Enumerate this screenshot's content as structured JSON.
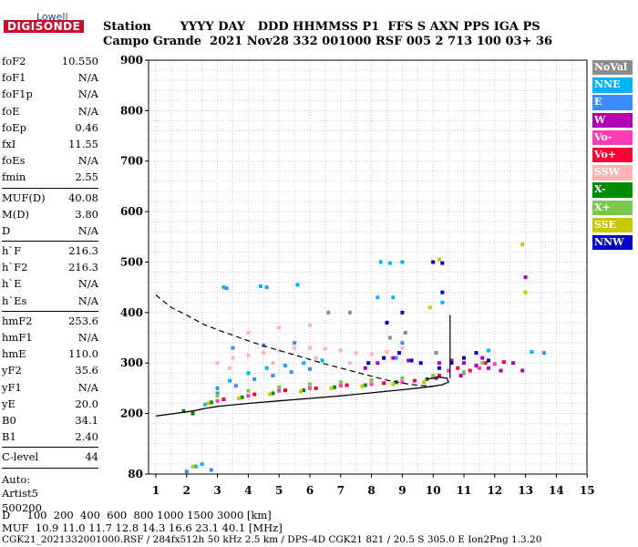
{
  "logo": {
    "top": "Lowell",
    "main": "DIGISONDE"
  },
  "header": {
    "row1": "Station       YYYY DAY   DDD HHMMSS P1  FFS S AXN PPS IGA PS",
    "row2": "Campo Grande  2021 Nov28 332 001000 RSF 005 2 713 100 03+ 36"
  },
  "params": {
    "group1": [
      {
        "name": "foF2",
        "value": "10.550"
      },
      {
        "name": "foF1",
        "value": "N/A"
      },
      {
        "name": "foF1p",
        "value": "N/A"
      },
      {
        "name": "foE",
        "value": "N/A"
      },
      {
        "name": "foEp",
        "value": "0.46"
      },
      {
        "name": "fxI",
        "value": "11.55"
      },
      {
        "name": "foEs",
        "value": "N/A"
      },
      {
        "name": "fmin",
        "value": "2.55"
      }
    ],
    "group2": [
      {
        "name": "MUF(D)",
        "value": "40.08"
      },
      {
        "name": "M(D)",
        "value": "3.80"
      },
      {
        "name": "D",
        "value": "N/A"
      }
    ],
    "group3": [
      {
        "name": "h`F",
        "value": "216.3"
      },
      {
        "name": "h`F2",
        "value": "216.3"
      },
      {
        "name": "h`E",
        "value": "N/A"
      },
      {
        "name": "h`Es",
        "value": "N/A"
      }
    ],
    "group4": [
      {
        "name": "hmF2",
        "value": "253.6"
      },
      {
        "name": "hmF1",
        "value": "N/A"
      },
      {
        "name": "hmE",
        "value": "110.0"
      },
      {
        "name": "yF2",
        "value": "35.6"
      },
      {
        "name": "yF1",
        "value": "N/A"
      },
      {
        "name": "yE",
        "value": "20.0"
      },
      {
        "name": "B0",
        "value": "34.1"
      },
      {
        "name": "B1",
        "value": "2.40"
      }
    ],
    "group5": [
      {
        "name": "C-level",
        "value": "44"
      }
    ],
    "auto_lines": [
      "Auto:",
      "Artist5",
      "500200"
    ]
  },
  "legend": [
    {
      "label": "NoVal",
      "color": "#8c8c8c"
    },
    {
      "label": "NNE",
      "color": "#00b4ff"
    },
    {
      "label": "E",
      "color": "#3c8cff"
    },
    {
      "label": "W",
      "color": "#b400b4"
    },
    {
      "label": "Vo-",
      "color": "#ff3cb4"
    },
    {
      "label": "Vo+",
      "color": "#ff0032"
    },
    {
      "label": "SSW",
      "color": "#ffb4b4"
    },
    {
      "label": "X-",
      "color": "#008c00"
    },
    {
      "label": "X+",
      "color": "#78c850"
    },
    {
      "label": "SSE",
      "color": "#c8c800"
    },
    {
      "label": "NNW",
      "color": "#0000c8"
    }
  ],
  "footer": {
    "d_line": "D     100  200  400  600  800 1000 1500 3000 [km]",
    "muf_line": "MUF  10.9 11.0 11.7 12.8 14.3 16.6 23.1 40.1 [MHz]",
    "info_line": "CGK21_2021332001000.RSF / 284fx512h 50 kHz 2.5 km / DPS-4D CGK21 821 / 20.5 S 305.0 E Ion2Png 1.3.20"
  },
  "chart_data": {
    "type": "scatter",
    "x_ticks": [
      1,
      2,
      3,
      4,
      5,
      6,
      7,
      8,
      9,
      10,
      11,
      12,
      13,
      14,
      15
    ],
    "y_ticks": [
      80,
      200,
      300,
      400,
      500,
      600,
      700,
      800,
      900
    ],
    "xlim": [
      0.8,
      15
    ],
    "ylim": [
      80,
      900
    ],
    "grid": true,
    "grid_x_minor_step": 0.5,
    "grid_y_step": 20,
    "legend_position": "right",
    "series": [
      {
        "name": "NNE",
        "color": "#00b4ff",
        "points": [
          [
            2.6,
            218
          ],
          [
            3.0,
            250
          ],
          [
            3.4,
            265
          ],
          [
            4.0,
            280
          ],
          [
            4.6,
            290
          ],
          [
            5.2,
            295
          ],
          [
            5.8,
            300
          ],
          [
            6.4,
            305
          ],
          [
            3.2,
            450
          ],
          [
            4.4,
            452
          ],
          [
            5.6,
            455
          ],
          [
            8.3,
            500
          ],
          [
            8.6,
            498
          ],
          [
            9.0,
            500
          ],
          [
            8.2,
            430
          ],
          [
            8.7,
            430
          ],
          [
            10.3,
            420
          ],
          [
            11.8,
            325
          ],
          [
            13.2,
            322
          ],
          [
            2.3,
            95
          ],
          [
            2.5,
            100
          ]
        ]
      },
      {
        "name": "E",
        "color": "#3c8cff",
        "points": [
          [
            3.0,
            240
          ],
          [
            3.6,
            255
          ],
          [
            4.2,
            268
          ],
          [
            4.8,
            275
          ],
          [
            5.4,
            282
          ],
          [
            6.0,
            288
          ],
          [
            3.5,
            330
          ],
          [
            4.5,
            335
          ],
          [
            5.5,
            340
          ],
          [
            3.3,
            448
          ],
          [
            4.6,
            450
          ],
          [
            9.0,
            340
          ],
          [
            8.8,
            310
          ],
          [
            13.6,
            320
          ],
          [
            2.0,
            85
          ],
          [
            2.8,
            88
          ]
        ]
      },
      {
        "name": "W",
        "color": "#b400b4",
        "points": [
          [
            7.8,
            290
          ],
          [
            8.2,
            300
          ],
          [
            8.7,
            310
          ],
          [
            9.2,
            305
          ],
          [
            10.2,
            300
          ],
          [
            10.6,
            305
          ],
          [
            11.0,
            300
          ],
          [
            11.4,
            295
          ],
          [
            11.8,
            290
          ],
          [
            12.2,
            285
          ],
          [
            12.6,
            300
          ],
          [
            12.9,
            285
          ],
          [
            10.1,
            270
          ],
          [
            10.9,
            275
          ],
          [
            11.6,
            310
          ],
          [
            13.0,
            470
          ]
        ]
      },
      {
        "name": "Vo-",
        "color": "#ff3cb4",
        "points": [
          [
            3.0,
            225
          ],
          [
            4.0,
            235
          ],
          [
            5.0,
            245
          ],
          [
            6.0,
            250
          ],
          [
            7.0,
            255
          ],
          [
            8.0,
            258
          ],
          [
            9.0,
            262
          ],
          [
            10.0,
            272
          ],
          [
            10.5,
            285
          ],
          [
            11.0,
            280
          ],
          [
            11.5,
            290
          ],
          [
            12.0,
            298
          ]
        ]
      },
      {
        "name": "Vo+",
        "color": "#ff0032",
        "points": [
          [
            3.2,
            228
          ],
          [
            4.2,
            238
          ],
          [
            5.2,
            246
          ],
          [
            6.2,
            250
          ],
          [
            7.2,
            256
          ],
          [
            8.4,
            260
          ],
          [
            9.4,
            265
          ],
          [
            10.2,
            275
          ],
          [
            10.8,
            290
          ],
          [
            11.2,
            285
          ],
          [
            11.7,
            300
          ],
          [
            12.3,
            302
          ]
        ]
      },
      {
        "name": "SSW",
        "color": "#ffb4b4",
        "points": [
          [
            3.0,
            300
          ],
          [
            3.5,
            310
          ],
          [
            4.0,
            315
          ],
          [
            4.5,
            320
          ],
          [
            5.0,
            325
          ],
          [
            5.5,
            330
          ],
          [
            6.0,
            330
          ],
          [
            6.5,
            328
          ],
          [
            7.0,
            325
          ],
          [
            7.5,
            320
          ],
          [
            8.0,
            318
          ],
          [
            8.5,
            322
          ],
          [
            9.0,
            330
          ],
          [
            4.0,
            360
          ],
          [
            5.0,
            370
          ],
          [
            6.0,
            375
          ],
          [
            3.4,
            290
          ],
          [
            4.8,
            300
          ],
          [
            6.2,
            310
          ],
          [
            7.3,
            300
          ]
        ]
      },
      {
        "name": "X-",
        "color": "#008c00",
        "points": [
          [
            2.8,
            222
          ],
          [
            3.8,
            232
          ],
          [
            4.8,
            240
          ],
          [
            5.8,
            246
          ],
          [
            6.8,
            252
          ],
          [
            7.8,
            256
          ],
          [
            8.8,
            262
          ],
          [
            9.8,
            268
          ],
          [
            1.9,
            205
          ],
          [
            2.2,
            200
          ]
        ]
      },
      {
        "name": "X+",
        "color": "#78c850",
        "points": [
          [
            3.0,
            235
          ],
          [
            4.0,
            245
          ],
          [
            5.0,
            252
          ],
          [
            6.0,
            258
          ],
          [
            7.0,
            262
          ],
          [
            8.0,
            266
          ],
          [
            9.0,
            270
          ],
          [
            10.0,
            275
          ],
          [
            11.0,
            282
          ],
          [
            11.6,
            300
          ]
        ]
      },
      {
        "name": "SSE",
        "color": "#c8c800",
        "points": [
          [
            2.7,
            220
          ],
          [
            3.7,
            230
          ],
          [
            4.7,
            238
          ],
          [
            5.7,
            244
          ],
          [
            6.7,
            250
          ],
          [
            7.7,
            254
          ],
          [
            8.7,
            258
          ],
          [
            9.7,
            262
          ],
          [
            10.2,
            505
          ],
          [
            13.0,
            440
          ],
          [
            12.9,
            535
          ],
          [
            9.9,
            410
          ],
          [
            2.2,
            95
          ]
        ]
      },
      {
        "name": "NNW",
        "color": "#0000c8",
        "points": [
          [
            7.9,
            300
          ],
          [
            8.4,
            310
          ],
          [
            8.9,
            320
          ],
          [
            9.3,
            305
          ],
          [
            9.6,
            300
          ],
          [
            10.2,
            290
          ],
          [
            10.6,
            300
          ],
          [
            11.0,
            310
          ],
          [
            11.4,
            320
          ],
          [
            11.8,
            305
          ],
          [
            10.0,
            500
          ],
          [
            10.3,
            498
          ],
          [
            9.0,
            400
          ],
          [
            8.5,
            380
          ],
          [
            10.3,
            440
          ]
        ]
      },
      {
        "name": "NoVal",
        "color": "#8c8c8c",
        "points": [
          [
            6.6,
            400
          ],
          [
            7.3,
            400
          ],
          [
            9.1,
            360
          ],
          [
            8.6,
            350
          ],
          [
            10.1,
            320
          ]
        ]
      }
    ],
    "profile_curve": [
      [
        1.0,
        195
      ],
      [
        1.6,
        200
      ],
      [
        2.2,
        205
      ],
      [
        2.6,
        210
      ],
      [
        3.0,
        214
      ],
      [
        3.5,
        217
      ],
      [
        4.0,
        220
      ],
      [
        5.0,
        225
      ],
      [
        6.0,
        230
      ],
      [
        7.0,
        235
      ],
      [
        8.0,
        241
      ],
      [
        9.0,
        247
      ],
      [
        9.6,
        251
      ],
      [
        10.0,
        254
      ],
      [
        10.3,
        257
      ],
      [
        10.5,
        262
      ],
      [
        10.45,
        270
      ],
      [
        10.2,
        272
      ],
      [
        9.8,
        268
      ]
    ],
    "topside_dashed": [
      [
        1.0,
        435
      ],
      [
        1.5,
        410
      ],
      [
        2.0,
        395
      ],
      [
        2.5,
        378
      ],
      [
        3.0,
        366
      ],
      [
        3.5,
        355
      ],
      [
        4.0,
        344
      ],
      [
        4.5,
        334
      ],
      [
        5.0,
        325
      ],
      [
        5.5,
        316
      ],
      [
        6.0,
        307
      ],
      [
        6.5,
        298
      ],
      [
        7.0,
        290
      ],
      [
        7.5,
        282
      ],
      [
        8.0,
        274
      ],
      [
        8.5,
        266
      ],
      [
        9.0,
        260
      ],
      [
        9.5,
        256
      ],
      [
        10.0,
        254
      ]
    ],
    "vertical_segment": [
      [
        10.55,
        270
      ],
      [
        10.55,
        395
      ]
    ]
  }
}
